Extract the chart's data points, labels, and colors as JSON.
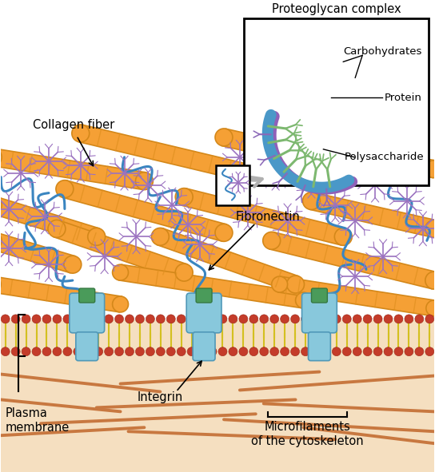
{
  "bg_color": "#ffffff",
  "labels": {
    "proteoglycan_complex": "Proteoglycan complex",
    "carbohydrates": "Carbohydrates",
    "protein": "Protein",
    "polysaccharide": "Polysaccharide",
    "collagen_fiber": "Collagen fiber",
    "fibronectin": "Fibronectin",
    "integrin": "Integrin",
    "plasma_membrane": "Plasma\nmembrane",
    "microfilaments": "Microfilaments\nof the cytoskeleton"
  },
  "colors": {
    "collagen_fill": "#F5A035",
    "collagen_edge": "#D4881A",
    "collagen_seg": "#E09020",
    "membrane_head": "#C43C2A",
    "membrane_head_edge": "#9B2515",
    "membrane_tail": "#D4C020",
    "membrane_bg": "#F5DFC0",
    "integrin_body": "#88C8DC",
    "integrin_cap": "#4A9B5A",
    "fibronectin": "#3A85C0",
    "proteoglycan_purple": "#9B72C0",
    "proteoglycan_green": "#7DB870",
    "proteoglycan_purple_inset": "#8B68B8",
    "cytoskeleton": "#C87840",
    "inset_bg": "#ffffff",
    "inset_border": "#000000",
    "arrow_gray": "#B0B0B0",
    "text_color": "#000000"
  },
  "figsize": [
    5.44,
    5.91
  ],
  "dpi": 100
}
